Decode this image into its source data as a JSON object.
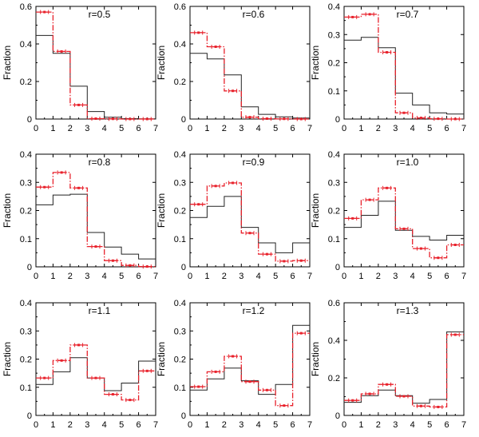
{
  "chart_data": [
    {
      "type": "line",
      "title": "r=0.5",
      "ylabel": "Fraction",
      "x_edges": [
        0,
        1,
        2,
        3,
        4,
        5,
        6,
        7
      ],
      "ylim": [
        0,
        0.6
      ],
      "yticks": [
        0,
        0.2,
        0.4,
        0.6
      ],
      "series": [
        {
          "role": "black-step",
          "values": [
            0.445,
            0.35,
            0.175,
            0.04,
            0.01,
            0.002,
            0.001
          ]
        },
        {
          "role": "red-dashed-step",
          "values": [
            0.57,
            0.36,
            0.075,
            0.002,
            0.001,
            0.0,
            0.0
          ]
        }
      ]
    },
    {
      "type": "line",
      "title": "r=0.6",
      "ylabel": "Fraction",
      "x_edges": [
        0,
        1,
        2,
        3,
        4,
        5,
        6,
        7
      ],
      "ylim": [
        0,
        0.6
      ],
      "yticks": [
        0,
        0.2,
        0.4,
        0.6
      ],
      "series": [
        {
          "role": "black-step",
          "values": [
            0.35,
            0.32,
            0.235,
            0.065,
            0.025,
            0.012,
            0.005
          ]
        },
        {
          "role": "red-dashed-step",
          "values": [
            0.46,
            0.385,
            0.15,
            0.01,
            0.002,
            0.001,
            0.0
          ]
        }
      ]
    },
    {
      "type": "line",
      "title": "r=0.7",
      "ylabel": "Fraction",
      "x_edges": [
        0,
        1,
        2,
        3,
        4,
        5,
        6,
        7
      ],
      "ylim": [
        0,
        0.4
      ],
      "yticks": [
        0,
        0.1,
        0.2,
        0.3,
        0.4
      ],
      "series": [
        {
          "role": "black-step",
          "values": [
            0.28,
            0.29,
            0.253,
            0.092,
            0.05,
            0.022,
            0.018
          ]
        },
        {
          "role": "red-dashed-step",
          "values": [
            0.362,
            0.372,
            0.237,
            0.022,
            0.004,
            0.001,
            0.0
          ]
        }
      ]
    },
    {
      "type": "line",
      "title": "r=0.8",
      "ylabel": "Fraction",
      "x_edges": [
        0,
        1,
        2,
        3,
        4,
        5,
        6,
        7
      ],
      "ylim": [
        0,
        0.4
      ],
      "yticks": [
        0,
        0.1,
        0.2,
        0.3,
        0.4
      ],
      "series": [
        {
          "role": "black-step",
          "values": [
            0.22,
            0.255,
            0.258,
            0.122,
            0.07,
            0.045,
            0.028
          ]
        },
        {
          "role": "red-dashed-step",
          "values": [
            0.283,
            0.335,
            0.28,
            0.072,
            0.022,
            0.005,
            0.001
          ]
        }
      ]
    },
    {
      "type": "line",
      "title": "r=0.9",
      "ylabel": "Fraction",
      "x_edges": [
        0,
        1,
        2,
        3,
        4,
        5,
        6,
        7
      ],
      "ylim": [
        0,
        0.4
      ],
      "yticks": [
        0,
        0.1,
        0.2,
        0.3,
        0.4
      ],
      "series": [
        {
          "role": "black-step",
          "values": [
            0.175,
            0.215,
            0.25,
            0.14,
            0.085,
            0.05,
            0.085
          ]
        },
        {
          "role": "red-dashed-step",
          "values": [
            0.222,
            0.287,
            0.298,
            0.12,
            0.045,
            0.02,
            0.022
          ]
        }
      ]
    },
    {
      "type": "line",
      "title": "r=1.0",
      "ylabel": "Fraction",
      "x_edges": [
        0,
        1,
        2,
        3,
        4,
        5,
        6,
        7
      ],
      "ylim": [
        0,
        0.4
      ],
      "yticks": [
        0,
        0.1,
        0.2,
        0.3,
        0.4
      ],
      "series": [
        {
          "role": "black-step",
          "values": [
            0.14,
            0.183,
            0.233,
            0.13,
            0.108,
            0.095,
            0.112
          ]
        },
        {
          "role": "red-dashed-step",
          "values": [
            0.172,
            0.238,
            0.28,
            0.135,
            0.065,
            0.032,
            0.078
          ]
        }
      ]
    },
    {
      "type": "line",
      "title": "r=1.1",
      "ylabel": "Fraction",
      "x_edges": [
        0,
        1,
        2,
        3,
        4,
        5,
        6,
        7
      ],
      "ylim": [
        0,
        0.4
      ],
      "yticks": [
        0,
        0.1,
        0.2,
        0.3,
        0.4
      ],
      "series": [
        {
          "role": "black-step",
          "values": [
            0.11,
            0.155,
            0.205,
            0.133,
            0.088,
            0.115,
            0.193
          ]
        },
        {
          "role": "red-dashed-step",
          "values": [
            0.133,
            0.195,
            0.25,
            0.133,
            0.075,
            0.055,
            0.158
          ]
        }
      ]
    },
    {
      "type": "line",
      "title": "r=1.2",
      "ylabel": "Fraction",
      "x_edges": [
        0,
        1,
        2,
        3,
        4,
        5,
        6,
        7
      ],
      "ylim": [
        0,
        0.4
      ],
      "yticks": [
        0,
        0.1,
        0.2,
        0.3,
        0.4
      ],
      "series": [
        {
          "role": "black-step",
          "values": [
            0.09,
            0.13,
            0.168,
            0.123,
            0.075,
            0.11,
            0.32
          ]
        },
        {
          "role": "red-dashed-step",
          "values": [
            0.102,
            0.155,
            0.21,
            0.12,
            0.09,
            0.035,
            0.292
          ]
        }
      ]
    },
    {
      "type": "line",
      "title": "r=1.3",
      "ylabel": "Fraction",
      "x_edges": [
        0,
        1,
        2,
        3,
        4,
        5,
        6,
        7
      ],
      "ylim": [
        0,
        0.6
      ],
      "yticks": [
        0,
        0.2,
        0.4,
        0.6
      ],
      "series": [
        {
          "role": "black-step",
          "values": [
            0.07,
            0.105,
            0.135,
            0.105,
            0.065,
            0.085,
            0.445
          ]
        },
        {
          "role": "red-dashed-step",
          "values": [
            0.08,
            0.115,
            0.165,
            0.102,
            0.05,
            0.045,
            0.43
          ]
        }
      ]
    }
  ],
  "colors": {
    "black_series": "#222222",
    "red_series": "#e8212b",
    "axis": "#000000"
  }
}
